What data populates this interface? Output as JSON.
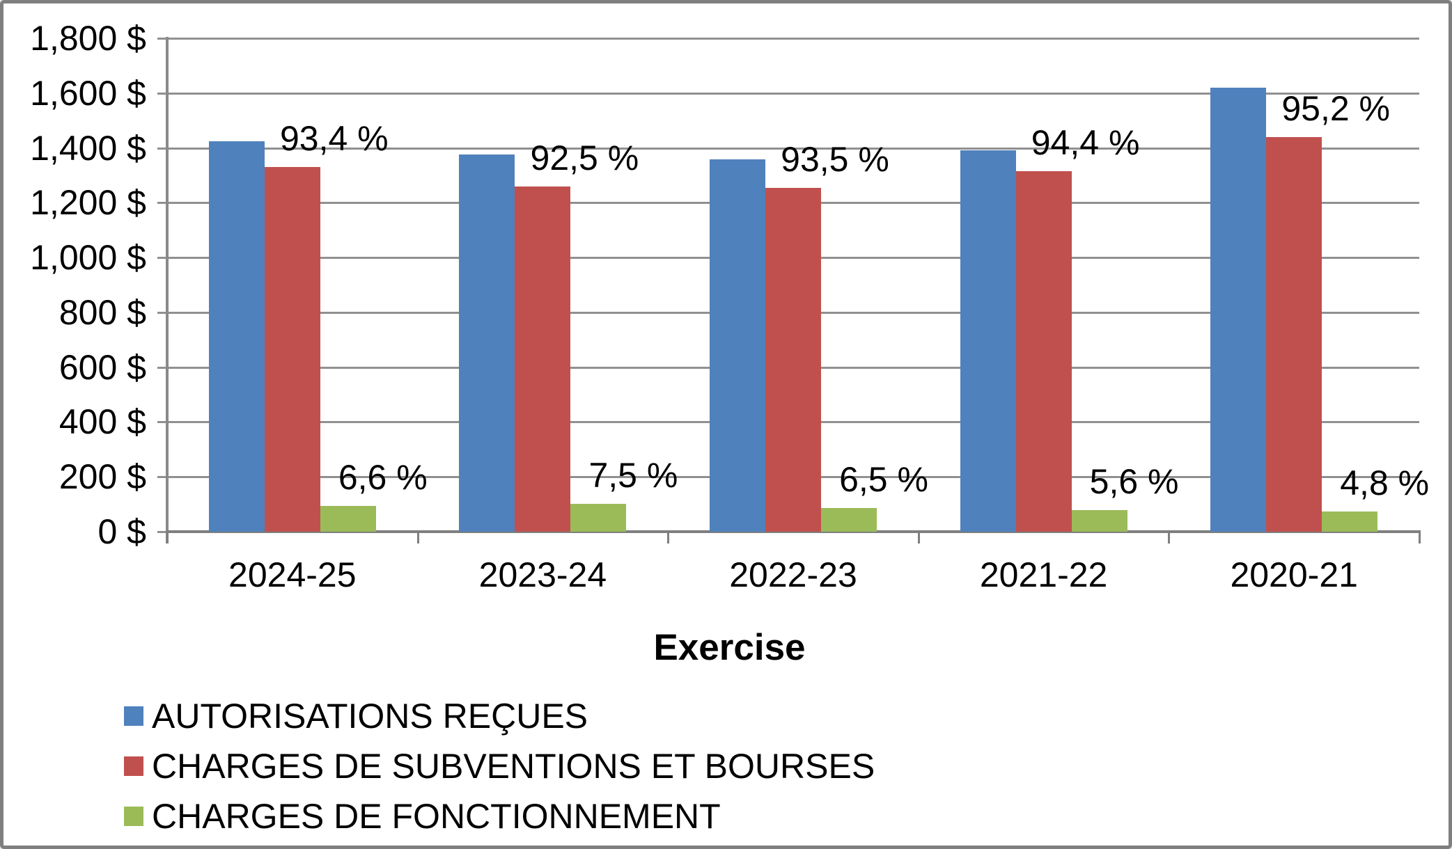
{
  "chart_data": {
    "type": "bar",
    "title": "",
    "xlabel": "Exercise",
    "ylabel": "",
    "grid": "horizontal",
    "legend_position": "bottom-left",
    "y_axis": {
      "min": 0,
      "max": 1800,
      "step": 200,
      "tick_suffix": " $",
      "tick_labels": [
        "0 $",
        "200 $",
        "400 $",
        "600 $",
        "800 $",
        "1,000 $",
        "1,200 $",
        "1,400 $",
        "1,600 $",
        "1,800 $"
      ]
    },
    "categories": [
      "2024-25",
      "2023-24",
      "2022-23",
      "2021-22",
      "2020-21"
    ],
    "series": [
      {
        "name": "AUTORISATIONS REÇUES",
        "color": "#4F81BD",
        "values": [
          1425,
          1375,
          1358,
          1390,
          1620
        ],
        "data_labels": [
          "",
          "",
          "",
          "",
          ""
        ]
      },
      {
        "name": "CHARGES DE SUBVENTIONS ET BOURSES",
        "color": "#C0504D",
        "values": [
          1330,
          1258,
          1255,
          1315,
          1440
        ],
        "data_labels": [
          "93,4 %",
          "92,5 %",
          "93,5 %",
          "94,4 %",
          "95,2 %"
        ]
      },
      {
        "name": "CHARGES DE FONCTIONNEMENT",
        "color": "#9BBB59",
        "values": [
          94,
          102,
          87,
          78,
          73
        ],
        "data_labels": [
          "6,6 %",
          "7,5 %",
          "6,5 %",
          "5,6 %",
          "4,8 %"
        ]
      }
    ]
  }
}
